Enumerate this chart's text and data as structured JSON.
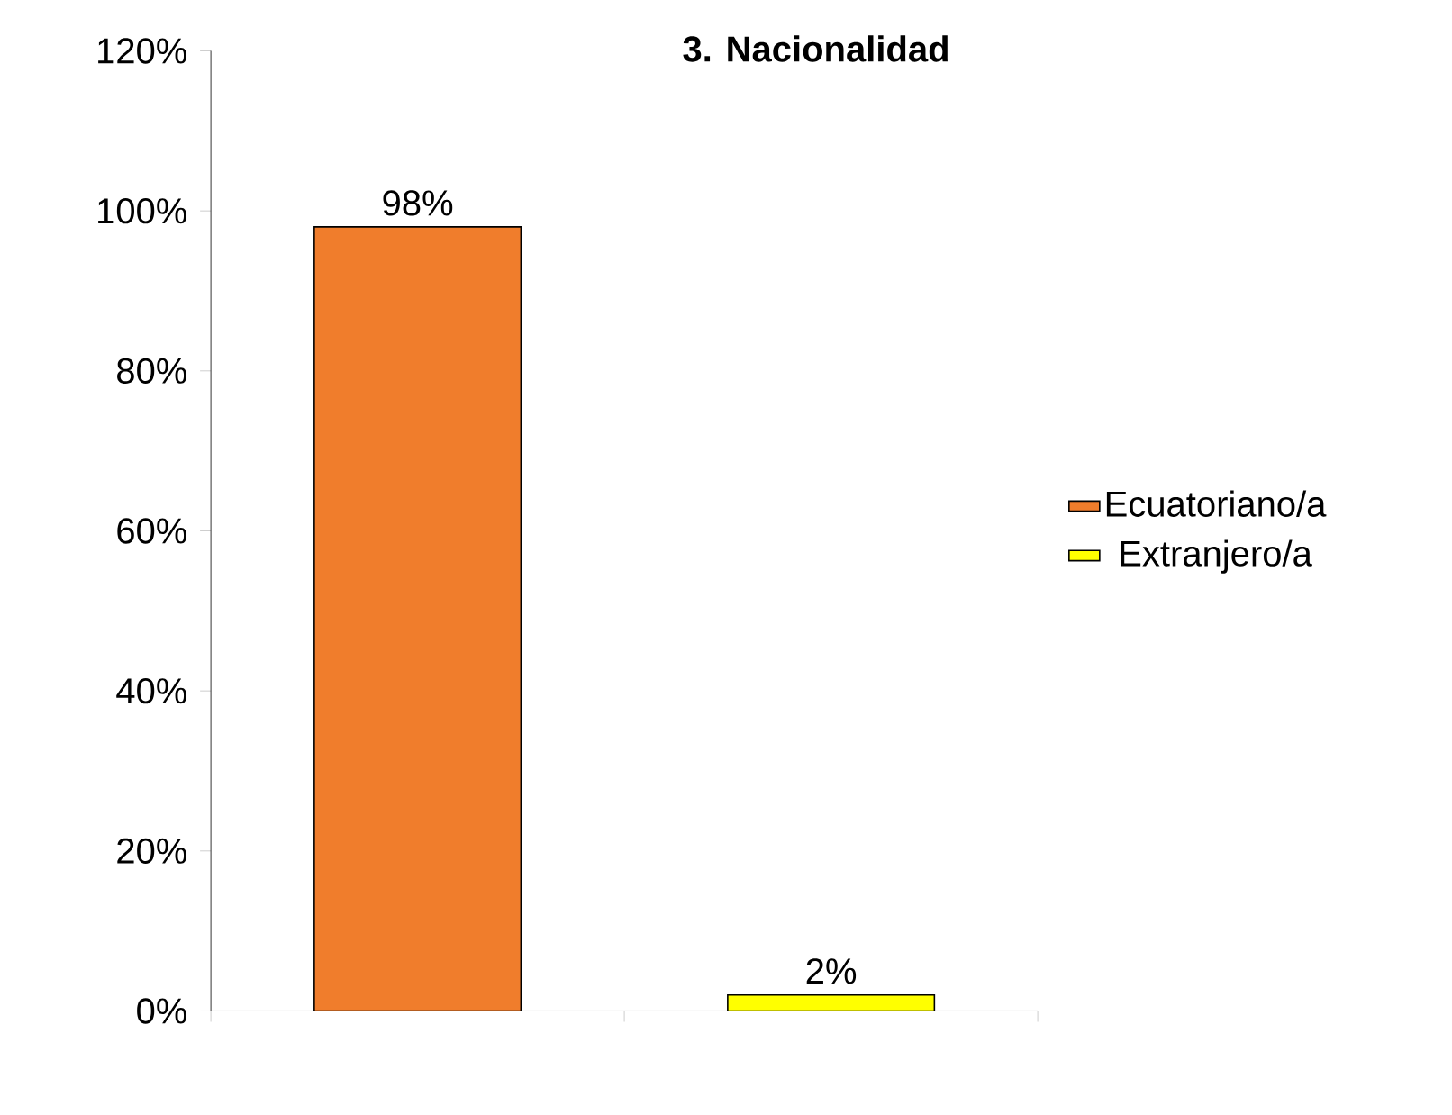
{
  "chart_data": {
    "type": "bar",
    "title": "3. Nacionalidad",
    "categories": [
      null,
      null
    ],
    "series": [
      {
        "name": "Ecuatoriano/a",
        "color": "#f07d2c",
        "values": [
          98,
          null
        ],
        "value_labels": [
          "98%",
          null
        ]
      },
      {
        "name": "Extranjero/a",
        "color": "#ffff00",
        "values": [
          null,
          2
        ],
        "value_labels": [
          null,
          "2%"
        ]
      }
    ],
    "ylim": [
      0,
      120
    ],
    "yticks": [
      {
        "value": 0,
        "label": "0%"
      },
      {
        "value": 20,
        "label": "20%"
      },
      {
        "value": 40,
        "label": "40%"
      },
      {
        "value": 60,
        "label": "60%"
      },
      {
        "value": 80,
        "label": "80%"
      },
      {
        "value": 100,
        "label": "100%"
      },
      {
        "value": 120,
        "label": "120%"
      }
    ],
    "grid": false,
    "legend": "right"
  }
}
